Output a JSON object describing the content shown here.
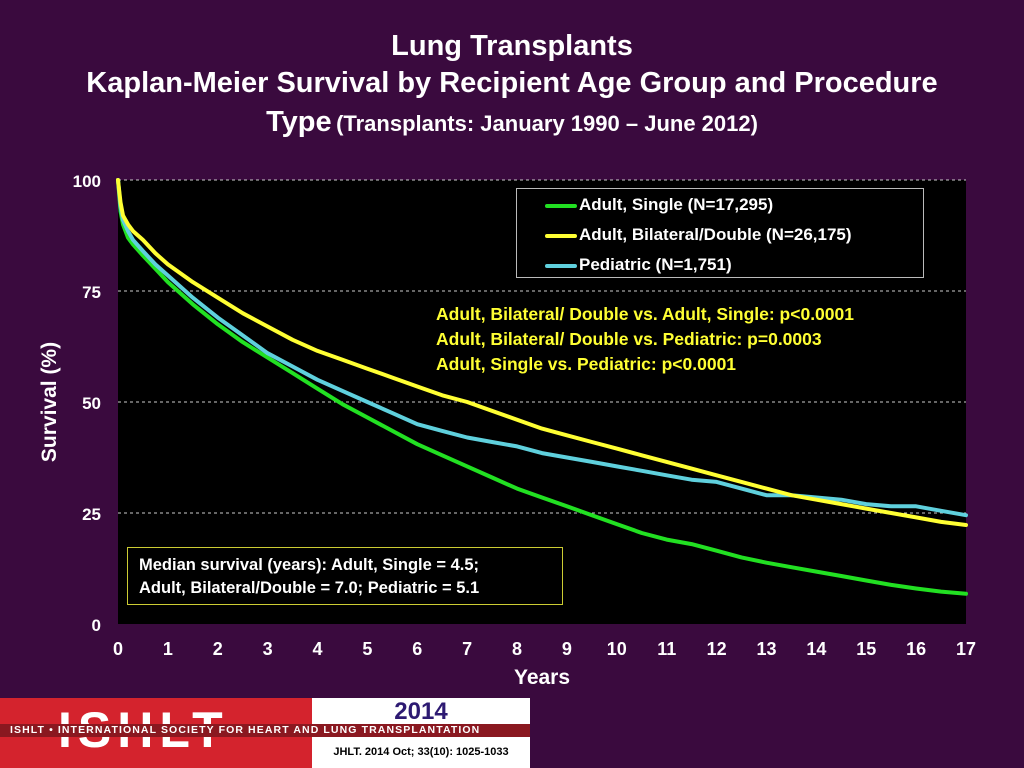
{
  "title": {
    "line1": "Lung Transplants",
    "line2": "Kaplan-Meier Survival by Recipient Age Group and Procedure",
    "line3_main": "Type",
    "line3_sub": "(Transplants: January 1990 – June 2012)"
  },
  "colors": {
    "background": "#3a0a3e",
    "adult_single": "#22e022",
    "adult_bilateral": "#ffff33",
    "pediatric": "#5fd0dd",
    "pvalues_text": "#ffff33",
    "logo_red": "#d4232d"
  },
  "pvalues": [
    "Adult, Bilateral/ Double vs. Adult, Single: p<0.0001",
    "Adult, Bilateral/ Double vs. Pediatric: p=0.0003",
    "Adult, Single vs. Pediatric: p<0.0001"
  ],
  "median": {
    "line1": "Median survival (years): Adult, Single = 4.5;",
    "line2": "Adult, Bilateral/Double = 7.0; Pediatric = 5.1"
  },
  "logo": {
    "letters": "ISHLT",
    "band": "ISHLT • INTERNATIONAL SOCIETY FOR HEART AND LUNG TRANSPLANTATION",
    "year": "2014",
    "citation": "JHLT. 2014 Oct; 33(10): 1025-1033"
  },
  "chart_data": {
    "type": "line",
    "xlabel": "Years",
    "ylabel": "Survival (%)",
    "xlim": [
      0,
      17
    ],
    "ylim": [
      0,
      100
    ],
    "xticks": [
      0,
      1,
      2,
      3,
      4,
      5,
      6,
      7,
      8,
      9,
      10,
      11,
      12,
      13,
      14,
      15,
      16,
      17
    ],
    "yticks": [
      0,
      25,
      50,
      75,
      100
    ],
    "grid": "horizontal dashed",
    "legend_position": "top-right",
    "series": [
      {
        "name": "Adult, Single (N=17,295)",
        "color": "#22e022",
        "x": [
          0,
          0.05,
          0.1,
          0.2,
          0.3,
          0.5,
          0.75,
          1,
          1.5,
          2,
          2.5,
          3,
          3.5,
          4,
          4.5,
          5,
          5.5,
          6,
          6.5,
          7,
          7.5,
          8,
          8.5,
          9,
          9.5,
          10,
          10.5,
          11,
          11.5,
          12,
          12.5,
          13,
          13.5,
          14,
          14.5,
          15,
          15.5,
          16,
          16.5,
          17
        ],
        "y": [
          100,
          93,
          90,
          87,
          85.5,
          83,
          80,
          77,
          72,
          67.5,
          63.5,
          60,
          56.5,
          53,
          49.5,
          46.5,
          43.5,
          40.5,
          38,
          35.5,
          33,
          30.5,
          28.5,
          26.5,
          24.5,
          22.5,
          20.5,
          19,
          18,
          16.5,
          15,
          13.8,
          12.8,
          11.8,
          10.8,
          9.8,
          8.8,
          8,
          7.3,
          6.8
        ]
      },
      {
        "name": "Adult, Bilateral/Double (N=26,175)",
        "color": "#ffff33",
        "x": [
          0,
          0.05,
          0.1,
          0.2,
          0.3,
          0.5,
          0.75,
          1,
          1.5,
          2,
          2.5,
          3,
          3.5,
          4,
          4.5,
          5,
          5.5,
          6,
          6.5,
          7,
          7.5,
          8,
          8.5,
          9,
          9.5,
          10,
          10.5,
          11,
          11.5,
          12,
          12.5,
          13,
          13.5,
          14,
          14.5,
          15,
          15.5,
          16,
          16.5,
          17
        ],
        "y": [
          100,
          95,
          92,
          90,
          88.5,
          86.5,
          83.5,
          81,
          77,
          73.5,
          70,
          67,
          64,
          61.5,
          59.5,
          57.5,
          55.5,
          53.5,
          51.5,
          50,
          48,
          46,
          44,
          42.5,
          41,
          39.5,
          38,
          36.5,
          35,
          33.5,
          32,
          30.5,
          29,
          28,
          27,
          26,
          25,
          24,
          23,
          22.3
        ]
      },
      {
        "name": "Pediatric (N=1,751)",
        "color": "#5fd0dd",
        "x": [
          0,
          0.05,
          0.1,
          0.2,
          0.3,
          0.5,
          0.75,
          1,
          1.5,
          2,
          2.5,
          3,
          3.5,
          4,
          4.5,
          5,
          5.5,
          6,
          6.5,
          7,
          7.5,
          8,
          8.5,
          9,
          9.5,
          10,
          10.5,
          11,
          11.5,
          12,
          12.5,
          13,
          13.5,
          14,
          14.5,
          15,
          15.5,
          16,
          16.5,
          17
        ],
        "y": [
          100,
          94,
          91,
          88.5,
          86.5,
          84,
          81,
          78.5,
          73.5,
          69,
          65,
          61,
          58,
          55,
          52.5,
          50,
          47.5,
          45,
          43.5,
          42,
          41,
          40,
          38.5,
          37.5,
          36.5,
          35.5,
          34.5,
          33.5,
          32.5,
          32,
          30.5,
          29,
          29,
          28.5,
          28,
          27,
          26.5,
          26.5,
          25.5,
          24.5
        ]
      }
    ]
  }
}
